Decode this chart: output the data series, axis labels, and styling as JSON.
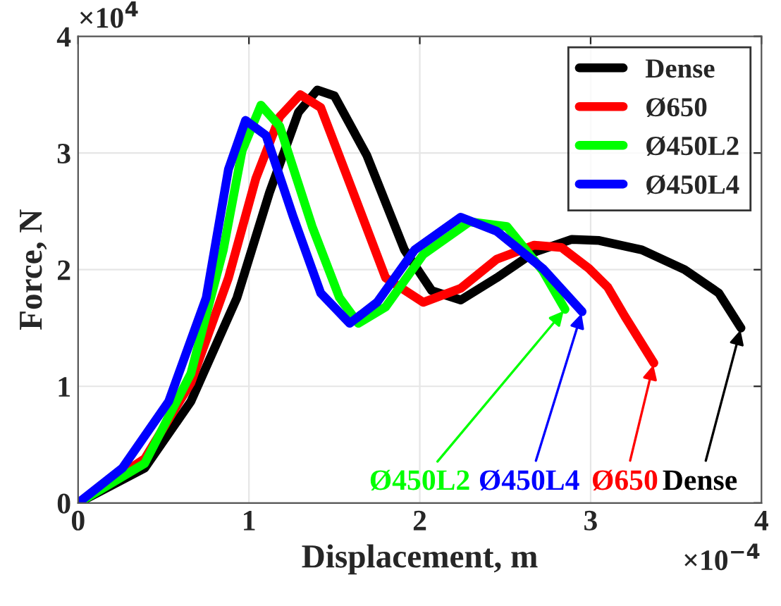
{
  "chart_data": {
    "type": "line",
    "xlabel": "Displacement, m",
    "ylabel": "Force, N",
    "xlim": [
      0,
      4
    ],
    "ylim": [
      0,
      4
    ],
    "xticks": [
      0,
      1,
      2,
      3,
      4
    ],
    "yticks": [
      0,
      1,
      2,
      3,
      4
    ],
    "grid": true,
    "legend": "top right",
    "line_style": "solid",
    "marker": "none",
    "series": [
      {
        "name": "Dense",
        "color": "#000000",
        "x": [
          0,
          0.39,
          0.66,
          0.93,
          1.12,
          1.29,
          1.4,
          1.5,
          1.69,
          1.91,
          2.07,
          2.24,
          2.45,
          2.67,
          2.89,
          3.05,
          3.3,
          3.55,
          3.75,
          3.88
        ],
        "values": [
          0,
          0.3,
          0.87,
          1.76,
          2.66,
          3.35,
          3.54,
          3.49,
          2.98,
          2.17,
          1.82,
          1.74,
          1.93,
          2.15,
          2.26,
          2.25,
          2.17,
          2.0,
          1.8,
          1.5
        ]
      },
      {
        "name": "Ø650",
        "color": "#ff0000",
        "x": [
          0,
          0.39,
          0.66,
          0.88,
          1.04,
          1.18,
          1.3,
          1.42,
          1.59,
          1.8,
          2.02,
          2.24,
          2.45,
          2.67,
          2.83,
          2.99,
          3.1,
          3.2,
          3.37
        ],
        "values": [
          0,
          0.38,
          1.03,
          1.93,
          2.78,
          3.31,
          3.5,
          3.39,
          2.74,
          1.93,
          1.72,
          1.84,
          2.09,
          2.21,
          2.19,
          2.01,
          1.85,
          1.6,
          1.2
        ]
      },
      {
        "name": "Ø450L2",
        "color": "#00ff00",
        "x": [
          0,
          0.39,
          0.66,
          0.85,
          0.96,
          1.07,
          1.18,
          1.37,
          1.53,
          1.64,
          1.8,
          2.02,
          2.29,
          2.51,
          2.72,
          2.85
        ],
        "values": [
          0,
          0.34,
          1.11,
          2.17,
          3.02,
          3.41,
          3.23,
          2.37,
          1.76,
          1.54,
          1.68,
          2.13,
          2.41,
          2.37,
          1.99,
          1.66
        ]
      },
      {
        "name": "Ø450L4",
        "color": "#0000ff",
        "x": [
          0,
          0.26,
          0.53,
          0.75,
          0.88,
          0.98,
          1.1,
          1.26,
          1.42,
          1.59,
          1.75,
          1.97,
          2.24,
          2.45,
          2.72,
          2.95
        ],
        "values": [
          0,
          0.3,
          0.87,
          1.76,
          2.86,
          3.28,
          3.15,
          2.45,
          1.8,
          1.54,
          1.72,
          2.17,
          2.45,
          2.33,
          2.01,
          1.64
        ]
      }
    ],
    "annotations": [
      "×10$^{4}$",
      "×10$^{−4}$",
      {
        "text": "Ø450L2",
        "x": 2.85,
        "y": 1.66
      },
      {
        "text": "Ø450L4",
        "x": 2.95,
        "y": 1.64
      },
      {
        "text": "Ø650",
        "x": 3.37,
        "y": 1.2
      },
      {
        "text": "Dense",
        "x": 3.88,
        "y": 1.5
      }
    ]
  }
}
